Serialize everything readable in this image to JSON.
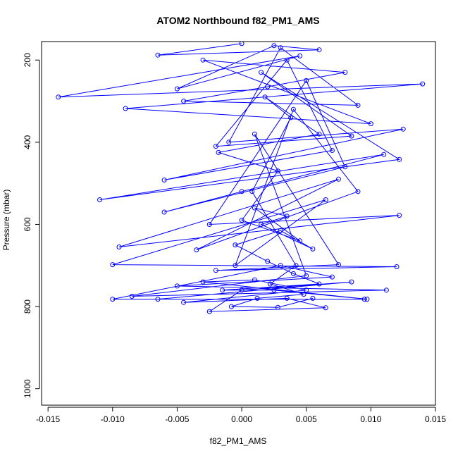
{
  "chart_data": {
    "type": "line",
    "title": "ATOM2 Northbound f82_PM1_AMS",
    "xlabel": "f82_PM1_AMS",
    "ylabel": "Pressure (mbar)",
    "xlim": [
      -0.0155,
      0.015
    ],
    "ylim": [
      1040,
      155
    ],
    "y_inverted": true,
    "x_ticks": [
      -0.015,
      -0.01,
      -0.005,
      0.0,
      0.005,
      0.01,
      0.015
    ],
    "x_tick_labels": [
      "-0.015",
      "-0.010",
      "-0.005",
      "0.000",
      "0.005",
      "0.010",
      "0.015"
    ],
    "y_ticks": [
      200,
      400,
      600,
      800,
      1000
    ],
    "y_tick_labels": [
      "200",
      "400",
      "600",
      "800",
      "1000"
    ],
    "grid": false,
    "legend": "none",
    "marker": "open-circle",
    "series_color": "#0000ff",
    "series": [
      {
        "points": [
          [
            0.0,
            160
          ],
          [
            -0.0065,
            188
          ],
          [
            0.006,
            175
          ],
          [
            0.0025,
            165
          ],
          [
            -0.005,
            270
          ],
          [
            0.0045,
            190
          ],
          [
            -0.0142,
            290
          ],
          [
            0.014,
            258
          ],
          [
            -0.009,
            318
          ],
          [
            0.01,
            355
          ],
          [
            -0.003,
            200
          ],
          [
            0.008,
            230
          ],
          [
            0.002,
            265
          ],
          [
            -0.0045,
            300
          ],
          [
            0.009,
            310
          ],
          [
            0.003,
            170
          ],
          [
            -0.001,
            400
          ],
          [
            0.0125,
            368
          ],
          [
            -0.006,
            492
          ],
          [
            0.007,
            420
          ],
          [
            0.0035,
            200
          ],
          [
            -0.002,
            410
          ],
          [
            0.0085,
            385
          ],
          [
            0.0015,
            230
          ],
          [
            0.0122,
            442
          ],
          [
            -0.011,
            540
          ],
          [
            0.011,
            430
          ],
          [
            0.0,
            520
          ],
          [
            -0.006,
            570
          ],
          [
            0.008,
            460
          ],
          [
            0.005,
            250
          ],
          [
            -0.0025,
            600
          ],
          [
            0.0122,
            578
          ],
          [
            -0.0095,
            655
          ],
          [
            0.0075,
            490
          ],
          [
            -0.0035,
            662
          ],
          [
            0.009,
            520
          ],
          [
            0.004,
            320
          ],
          [
            -0.0005,
            700
          ],
          [
            0.0065,
            540
          ],
          [
            -0.01,
            698
          ],
          [
            0.012,
            703
          ],
          [
            -0.002,
            712
          ],
          [
            0.0075,
            698
          ],
          [
            0.001,
            380
          ],
          [
            0.005,
            725
          ],
          [
            -0.0085,
            775
          ],
          [
            0.0112,
            760
          ],
          [
            -0.005,
            750
          ],
          [
            0.007,
            728
          ],
          [
            0.003,
            700
          ],
          [
            -0.01,
            782
          ],
          [
            0.0095,
            782
          ],
          [
            -0.0065,
            782
          ],
          [
            0.0085,
            740
          ],
          [
            0.0,
            760
          ],
          [
            -0.0025,
            812
          ],
          [
            0.0065,
            803
          ],
          [
            0.0035,
            780
          ],
          [
            -0.0045,
            790
          ],
          [
            0.005,
            760
          ],
          [
            0.001,
            735
          ],
          [
            -0.003,
            740
          ],
          [
            0.0097,
            782
          ],
          [
            0.0025,
            760
          ],
          [
            -0.0015,
            760
          ],
          [
            0.006,
            745
          ],
          [
            0.004,
            720
          ],
          [
            0.002,
            690
          ],
          [
            -0.0005,
            650
          ],
          [
            0.003,
            615
          ],
          [
            0.0055,
            660
          ],
          [
            0.0015,
            600
          ],
          [
            0.0035,
            580
          ],
          [
            0.001,
            560
          ],
          [
            0.0045,
            640
          ],
          [
            0.0,
            590
          ],
          [
            0.0028,
            470
          ],
          [
            -0.0018,
            425
          ],
          [
            0.006,
            380
          ],
          [
            0.0018,
            290
          ],
          [
            0.0038,
            340
          ],
          [
            0.0008,
            520
          ],
          [
            0.0042,
            700
          ],
          [
            0.0022,
            745
          ],
          [
            0.0048,
            770
          ],
          [
            0.0012,
            780
          ],
          [
            -0.0008,
            800
          ],
          [
            0.0028,
            802
          ],
          [
            0.0055,
            780
          ]
        ]
      }
    ]
  }
}
